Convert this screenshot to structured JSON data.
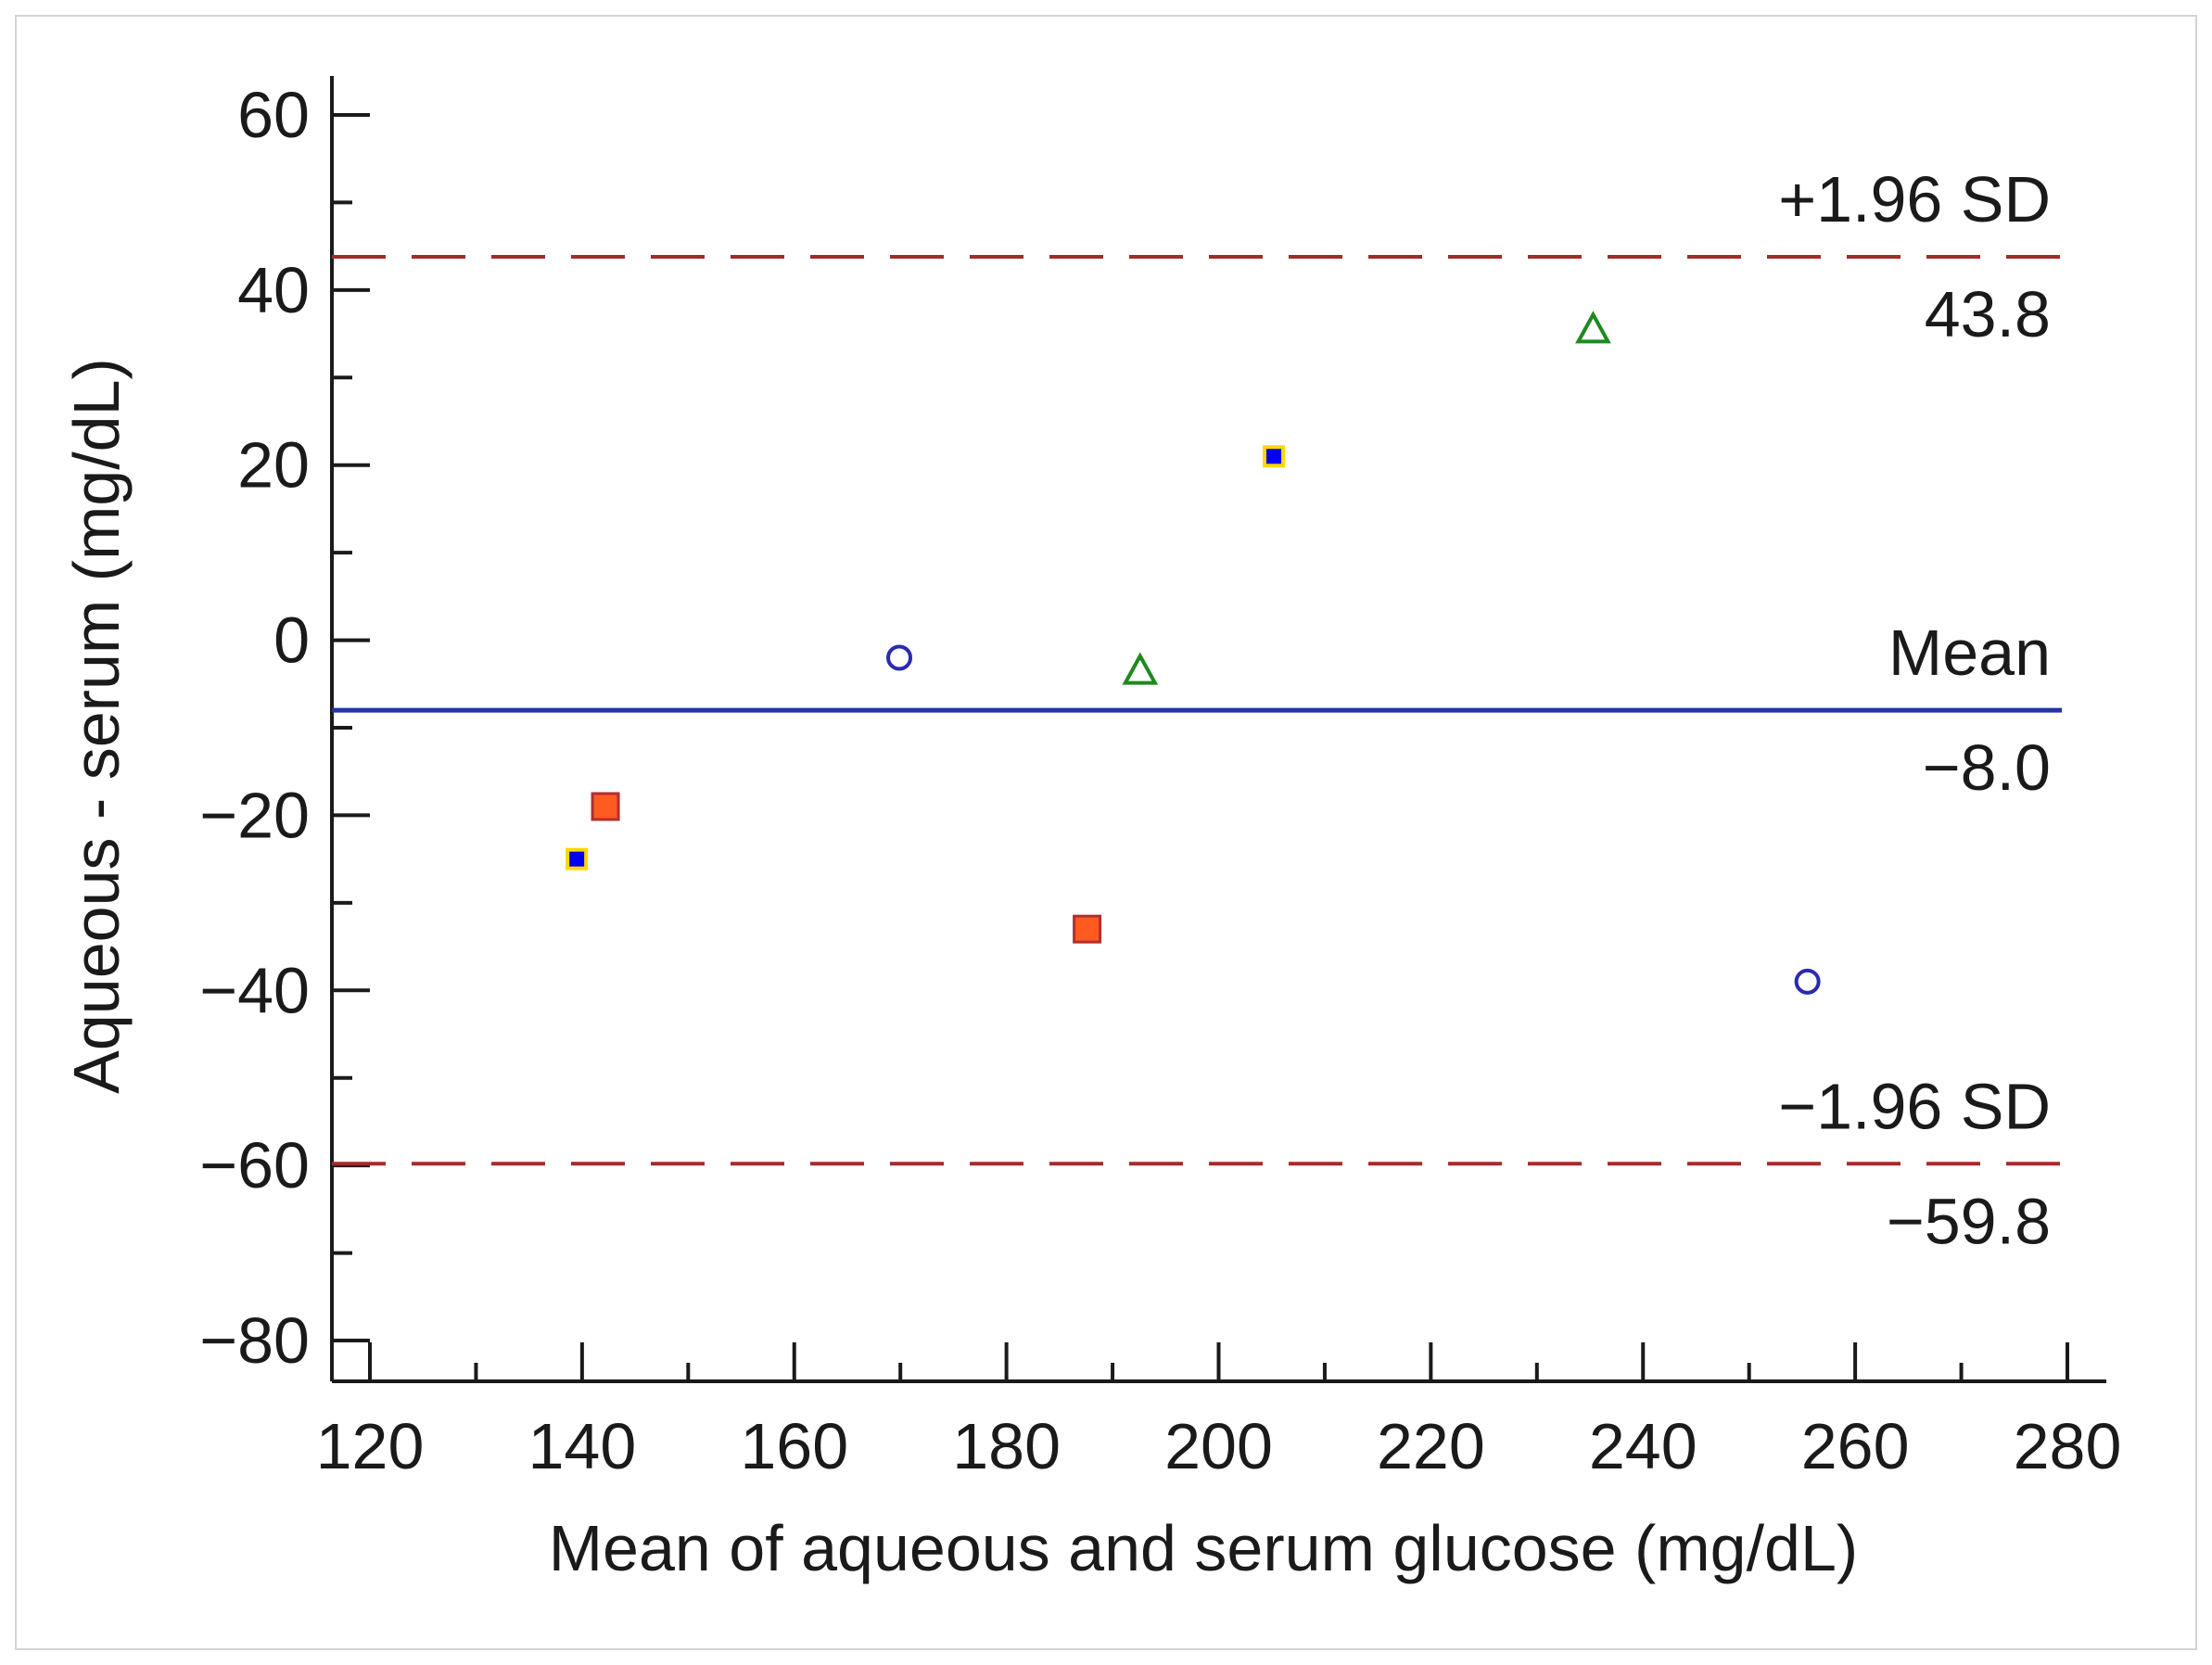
{
  "chart_data": {
    "type": "scatter",
    "title": "",
    "xlabel": "Mean of aqueous and serum glucose (mg/dL)",
    "ylabel": "Aqueous - serum (mg/dL)",
    "xlim": [
      120,
      280
    ],
    "ylim": [
      -80,
      60
    ],
    "x_major_ticks": [
      120,
      140,
      160,
      180,
      200,
      220,
      240,
      260,
      280
    ],
    "x_minor_ticks": [
      130,
      150,
      170,
      190,
      210,
      230,
      250,
      270
    ],
    "y_major_ticks": [
      -80,
      -60,
      -40,
      -20,
      0,
      20,
      40,
      60
    ],
    "y_minor_ticks": [
      -70,
      -50,
      -30,
      -10,
      10,
      30,
      50
    ],
    "x_tick_labels": [
      "120",
      "140",
      "160",
      "180",
      "200",
      "220",
      "240",
      "260",
      "280"
    ],
    "y_tick_labels": [
      "−80",
      "−60",
      "−40",
      "−20",
      "0",
      "20",
      "40",
      "60"
    ],
    "reference_lines": [
      {
        "name": "upper-loa",
        "y": 43.8,
        "style": "dashed",
        "color": "#a52a2a",
        "label_top": "+1.96 SD",
        "label_bottom": "43.8"
      },
      {
        "name": "mean",
        "y": -8.0,
        "style": "solid",
        "color": "#2233aa",
        "label_top": "Mean",
        "label_bottom": "−8.0"
      },
      {
        "name": "lower-loa",
        "y": -59.8,
        "style": "dashed",
        "color": "#a52a2a",
        "label_top": "−1.96 SD",
        "label_bottom": "−59.8"
      }
    ],
    "series": [
      {
        "name": "group-dot",
        "marker": "dot",
        "color": "#0000ee",
        "edge": "#ffd700",
        "points": [
          {
            "x": 139.5,
            "y": -25
          },
          {
            "x": 205.2,
            "y": 21
          }
        ]
      },
      {
        "name": "group-square",
        "marker": "square",
        "color": "#ff5a1f",
        "edge": "#b03030",
        "points": [
          {
            "x": 142.2,
            "y": -19
          },
          {
            "x": 187.6,
            "y": -33
          }
        ]
      },
      {
        "name": "group-circle",
        "marker": "open-circle",
        "color": "#2a2ab0",
        "points": [
          {
            "x": 169.9,
            "y": -2
          },
          {
            "x": 255.5,
            "y": -39
          }
        ]
      },
      {
        "name": "group-triangle",
        "marker": "open-triangle",
        "color": "#1e8a1e",
        "points": [
          {
            "x": 192.6,
            "y": -3.5
          },
          {
            "x": 235.3,
            "y": 35.5
          }
        ]
      }
    ]
  }
}
